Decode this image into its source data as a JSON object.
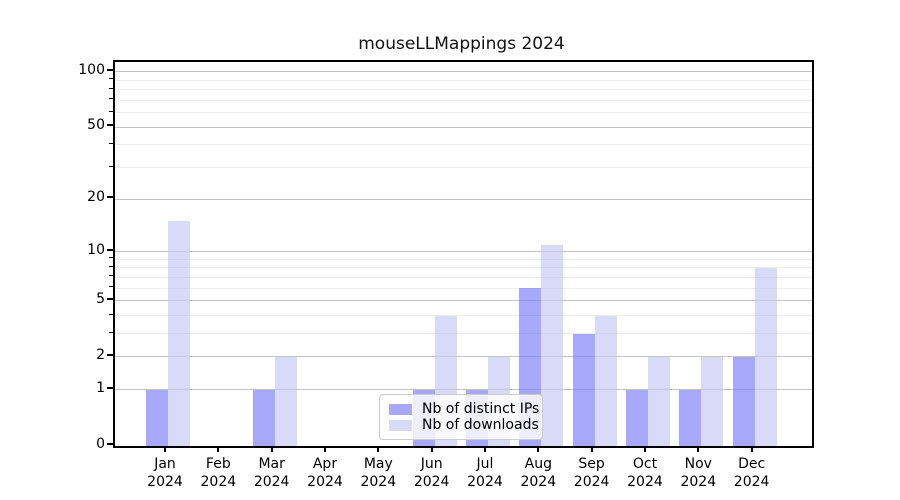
{
  "chart_data": {
    "type": "bar",
    "title": "mouseLLMappings 2024",
    "categories": [
      "Jan",
      "Feb",
      "Mar",
      "Apr",
      "May",
      "Jun",
      "Jul",
      "Aug",
      "Sep",
      "Oct",
      "Nov",
      "Dec"
    ],
    "x_year_label": "2024",
    "series": [
      {
        "name": "Nb of distinct IPs",
        "color": "#7979f7",
        "alpha": 0.65,
        "values": [
          1,
          0,
          1,
          0,
          0,
          1,
          1,
          6,
          3,
          1,
          1,
          2
        ]
      },
      {
        "name": "Nb of downloads",
        "color": "#c5c5f4",
        "alpha": 0.65,
        "values": [
          15,
          0,
          2,
          0,
          0,
          4,
          2,
          11,
          4,
          2,
          2,
          8
        ]
      }
    ],
    "yscale": "log1p",
    "ylim": [
      0,
      113
    ],
    "ytick_values": [
      0,
      1,
      2,
      5,
      10,
      20,
      50,
      100
    ],
    "ytick_labels": [
      "0",
      "1",
      "2",
      "5",
      "10",
      "20",
      "50",
      "100"
    ],
    "minor_gridline_values": [
      3,
      4,
      6,
      7,
      8,
      9,
      30,
      40,
      60,
      70,
      80,
      90
    ],
    "grid": "on",
    "legend_position": "lower center",
    "colors": {
      "grid_major": "#c4c4c4",
      "grid_minor": "#ececec",
      "spine": "#000000",
      "legend_border": "#cccccc"
    }
  }
}
